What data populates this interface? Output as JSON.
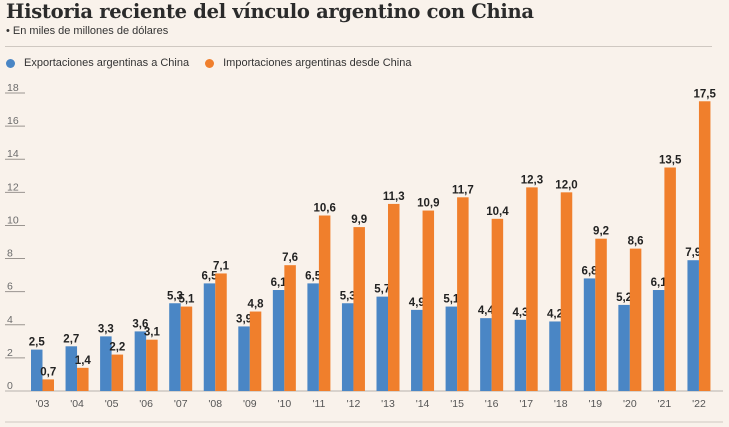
{
  "chart_data": {
    "type": "bar",
    "title": "Historia reciente del vínculo argentino con China",
    "subtitle": "• En miles de millones de dólares",
    "xlabel": "",
    "ylabel": "",
    "ylim": [
      0,
      18
    ],
    "yticks": [
      0,
      2,
      4,
      6,
      8,
      10,
      12,
      14,
      16,
      18
    ],
    "ytick_labels": [
      "0",
      "2",
      "4",
      "6",
      "8",
      "10",
      "12",
      "14",
      "16",
      "18"
    ],
    "grid": false,
    "legend_position": "top-left",
    "categories": [
      "'03",
      "'04",
      "'05",
      "'06",
      "'07",
      "'08",
      "'09",
      "'10",
      "'11",
      "'12",
      "'13",
      "'14",
      "'15",
      "'16",
      "'17",
      "'18",
      "'19",
      "'20",
      "'21",
      "'22"
    ],
    "series": [
      {
        "name": "Exportaciones argentinas a China",
        "color": "#4a86c5",
        "values": [
          2.5,
          2.7,
          3.3,
          3.6,
          5.3,
          6.5,
          3.9,
          6.1,
          6.5,
          5.3,
          5.7,
          4.9,
          5.1,
          4.4,
          4.3,
          4.2,
          6.8,
          5.2,
          6.1,
          7.9
        ],
        "labels": [
          "2,5",
          "2,7",
          "3,3",
          "3,6",
          "5,3",
          "6,5",
          "3,9",
          "6,1",
          "6,5",
          "5,3",
          "5,7",
          "4,9",
          "5,1",
          "4,4",
          "4,3",
          "4,2",
          "6,8",
          "5,2",
          "6,1",
          "7,9"
        ]
      },
      {
        "name": "Importaciones argentinas desde China",
        "color": "#f07f2c",
        "values": [
          0.7,
          1.4,
          2.2,
          3.1,
          5.1,
          7.1,
          4.8,
          7.6,
          10.6,
          9.9,
          11.3,
          10.9,
          11.7,
          10.4,
          12.3,
          12.0,
          9.2,
          8.6,
          13.5,
          17.5
        ],
        "labels": [
          "0,7",
          "1,4",
          "2,2",
          "3,1",
          "5,1",
          "7,1",
          "4,8",
          "7,6",
          "10,6",
          "9,9",
          "11,3",
          "10,9",
          "11,7",
          "10,4",
          "12,3",
          "12,0",
          "9,2",
          "8,6",
          "13,5",
          "17,5"
        ]
      }
    ]
  }
}
